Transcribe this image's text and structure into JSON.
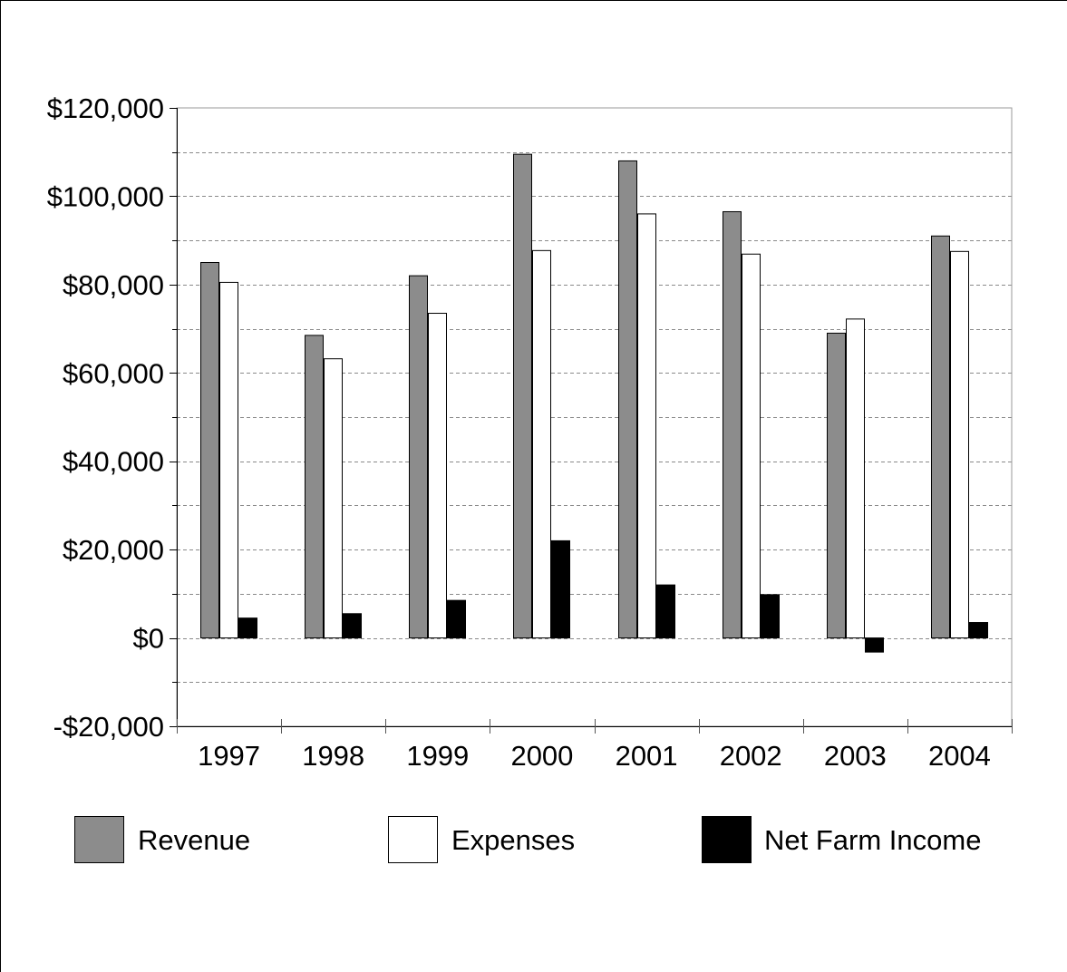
{
  "chart_data": {
    "type": "bar",
    "categories": [
      "1997",
      "1998",
      "1999",
      "2000",
      "2001",
      "2002",
      "2003",
      "2004"
    ],
    "series": [
      {
        "name": "Revenue",
        "color": "#8c8c8c",
        "values": [
          85000,
          68500,
          82000,
          109500,
          108000,
          96500,
          69000,
          91000
        ]
      },
      {
        "name": "Expenses",
        "color": "#ffffff",
        "values": [
          80500,
          63200,
          73500,
          87700,
          96000,
          86900,
          72200,
          87500
        ]
      },
      {
        "name": "Net Farm Income",
        "color": "#000000",
        "values": [
          4500,
          5500,
          8500,
          22000,
          12000,
          9800,
          -3200,
          3500
        ]
      }
    ],
    "ylim": [
      -20000,
      120000
    ],
    "y_ticks": [
      {
        "value": 120000,
        "label": "$120,000"
      },
      {
        "value": 100000,
        "label": "$100,000"
      },
      {
        "value": 80000,
        "label": "$80,000"
      },
      {
        "value": 60000,
        "label": "$60,000"
      },
      {
        "value": 40000,
        "label": "$40,000"
      },
      {
        "value": 20000,
        "label": "$20,000"
      },
      {
        "value": 0,
        "label": "$0"
      },
      {
        "value": -20000,
        "label": "-$20,000"
      }
    ],
    "minor_gridlines": [
      110000,
      90000,
      70000,
      50000,
      30000,
      10000,
      -10000
    ],
    "grid": true,
    "legend_position": "bottom",
    "title": "",
    "xlabel": "",
    "ylabel": ""
  }
}
